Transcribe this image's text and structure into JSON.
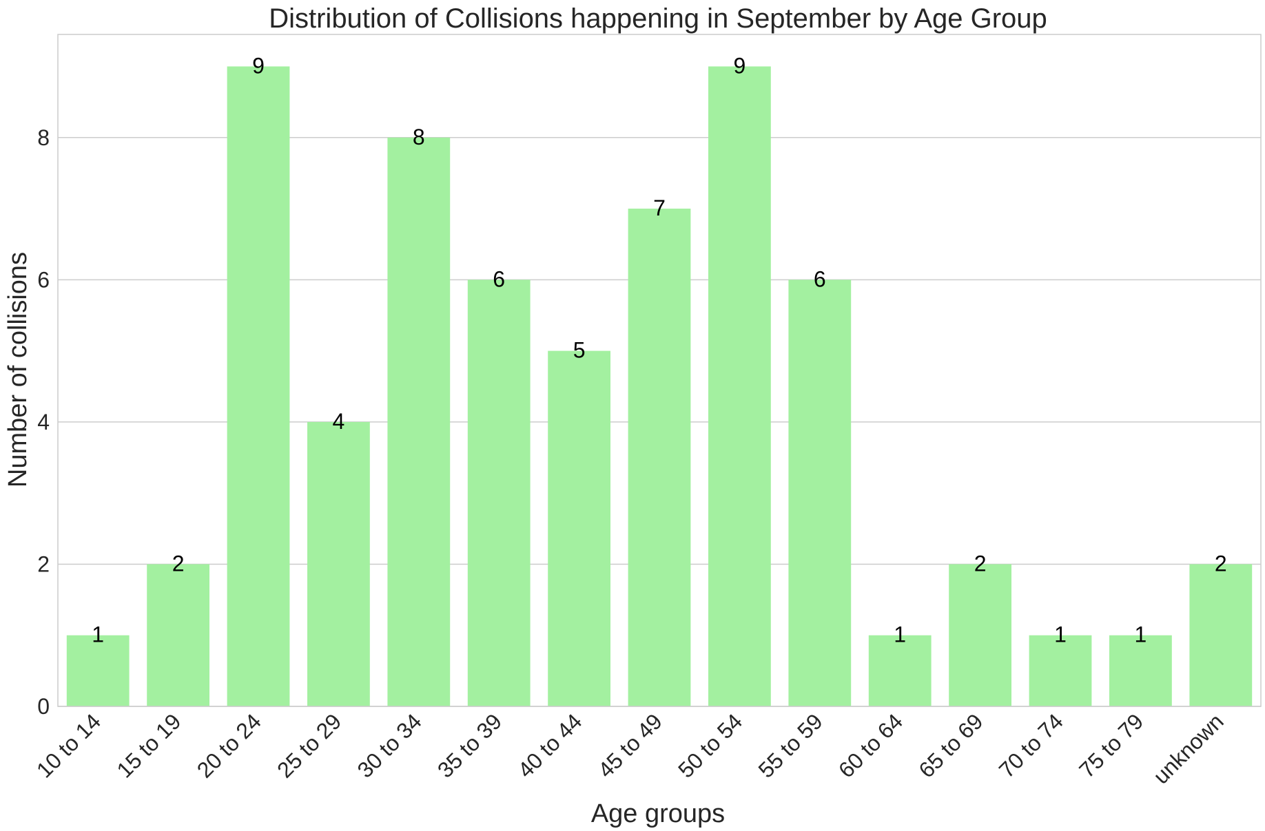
{
  "chart_data": {
    "type": "bar",
    "title": "Distribution of Collisions happening in September by Age Group",
    "xlabel": "Age groups",
    "ylabel": "Number of collisions",
    "categories": [
      "10 to 14",
      "15 to 19",
      "20 to 24",
      "25 to 29",
      "30 to 34",
      "35 to 39",
      "40 to 44",
      "45 to 49",
      "50 to 54",
      "55 to 59",
      "60 to 64",
      "65 to 69",
      "70 to 74",
      "75 to 79",
      "unknown"
    ],
    "values": [
      1,
      2,
      9,
      4,
      8,
      6,
      5,
      7,
      9,
      6,
      1,
      2,
      1,
      1,
      2
    ],
    "ylim": [
      0,
      9.45
    ],
    "yticks": [
      0,
      2,
      4,
      6,
      8
    ],
    "grid": true,
    "bar_color": "#a3f0a0",
    "grid_color": "#cccccc"
  }
}
